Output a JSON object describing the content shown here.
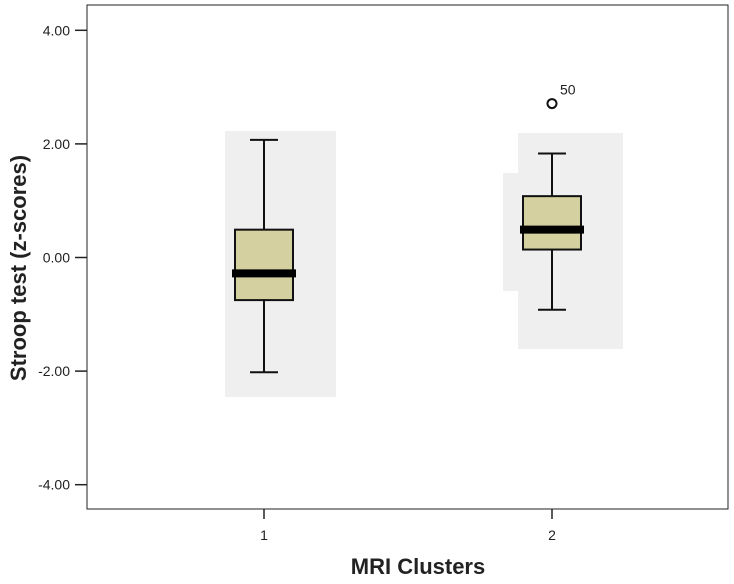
{
  "chart_data": {
    "type": "boxplot",
    "title": "",
    "xlabel": "MRI Clusters",
    "ylabel": "Stroop test (z-scores)",
    "ylim": [
      -4.5,
      4.5
    ],
    "yticks": [
      4,
      2,
      0,
      -2,
      -4
    ],
    "ytick_labels": [
      "4.00",
      "2.00",
      "0.00",
      "-2.00",
      "-4.00"
    ],
    "categories": [
      "1",
      "2"
    ],
    "grid": false,
    "box_color": "#d4d0a0",
    "shade_color": "#efefef",
    "groups": [
      {
        "category": "1",
        "min": -2.02,
        "q1": -0.75,
        "median": -0.28,
        "q3": 0.49,
        "max": 2.07,
        "outliers": []
      },
      {
        "category": "2",
        "min": -0.92,
        "q1": 0.14,
        "median": 0.49,
        "q3": 1.08,
        "max": 1.83,
        "outliers": [
          {
            "value": 2.71,
            "label": "50"
          }
        ]
      }
    ]
  }
}
